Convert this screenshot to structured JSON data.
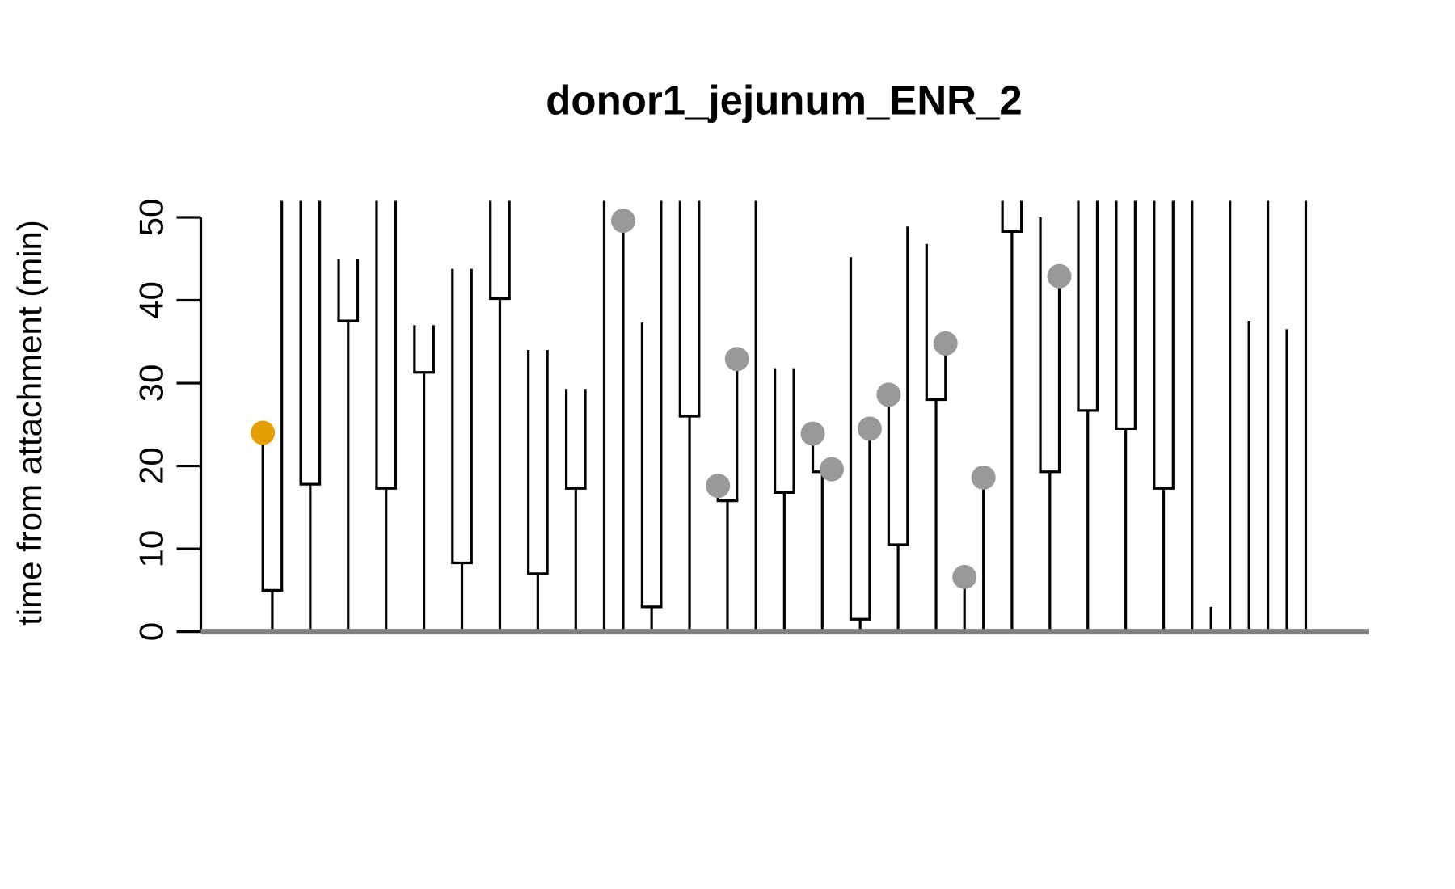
{
  "chart_data": {
    "type": "lineage",
    "title": "donor1_jejunum_ENR_2",
    "y_label": "time from attachment (min)",
    "ylim": [
      0,
      52
    ],
    "yticks": [
      0,
      10,
      20,
      30,
      40,
      50
    ],
    "line_color": "#000000",
    "baseline_color": "#808080",
    "lineages": [
      {
        "division": 5,
        "daughters": [
          {
            "end": 24,
            "dot": "#E69F00"
          },
          {
            "end": null
          }
        ]
      },
      {
        "division": 17.8,
        "daughters": [
          {
            "end": null
          },
          {
            "end": null
          }
        ]
      },
      {
        "division": 37.5,
        "daughters": [
          {
            "end": 45
          },
          {
            "end": 45
          }
        ]
      },
      {
        "division": 17.3,
        "daughters": [
          {
            "end": null
          },
          {
            "end": null
          }
        ]
      },
      {
        "division": 31.3,
        "daughters": [
          {
            "end": 37
          },
          {
            "end": 37
          }
        ]
      },
      {
        "division": 8.3,
        "daughters": [
          {
            "end": 43.8
          },
          {
            "end": 43.8
          }
        ]
      },
      {
        "division": 40.2,
        "daughters": [
          {
            "end": null
          },
          {
            "end": null
          }
        ]
      },
      {
        "division": 7,
        "daughters": [
          {
            "end": 34
          },
          {
            "end": 34
          }
        ]
      },
      {
        "division": 17.3,
        "daughters": [
          {
            "end": 29.3
          },
          {
            "end": 29.3
          }
        ]
      },
      {
        "end": null
      },
      {
        "end": 49.6,
        "dot": "#999999"
      },
      {
        "division": 3,
        "daughters": [
          {
            "end": 37.3
          },
          {
            "end": null
          }
        ]
      },
      {
        "division": 26,
        "daughters": [
          {
            "end": null
          },
          {
            "end": null
          }
        ]
      },
      {
        "division": 15.8,
        "daughters": [
          {
            "end": 17.6,
            "dot": "#999999"
          },
          {
            "end": 32.9,
            "dot": "#999999"
          }
        ]
      },
      {
        "end": null
      },
      {
        "division": 16.8,
        "daughters": [
          {
            "end": 31.8
          },
          {
            "end": 31.8
          }
        ]
      },
      {
        "division": 19.3,
        "daughters": [
          {
            "end": 23.9,
            "dot": "#999999"
          },
          {
            "end": 19.6,
            "dot": "#999999"
          }
        ]
      },
      {
        "division": 1.5,
        "daughters": [
          {
            "end": 45.2
          },
          {
            "end": 24.5,
            "dot": "#999999"
          }
        ]
      },
      {
        "division": 10.5,
        "daughters": [
          {
            "end": 28.6,
            "dot": "#999999"
          },
          {
            "end": 48.9
          }
        ]
      },
      {
        "division": 28,
        "daughters": [
          {
            "end": 46.8
          },
          {
            "end": 34.8,
            "dot": "#999999"
          }
        ]
      },
      {
        "end": 6.6,
        "dot": "#999999"
      },
      {
        "end": 18.6,
        "dot": "#999999"
      },
      {
        "division": 48.3,
        "daughters": [
          {
            "end": null
          },
          {
            "end": null
          }
        ]
      },
      {
        "division": 19.3,
        "daughters": [
          {
            "end": 50
          },
          {
            "end": 42.9,
            "dot": "#999999"
          }
        ]
      },
      {
        "division": 26.7,
        "daughters": [
          {
            "end": null
          },
          {
            "end": null
          }
        ]
      },
      {
        "division": 24.5,
        "daughters": [
          {
            "end": null
          },
          {
            "end": null
          }
        ]
      },
      {
        "division": 17.3,
        "daughters": [
          {
            "end": null
          },
          {
            "end": null
          }
        ]
      },
      {
        "end": null
      },
      {
        "end": 3
      },
      {
        "end": null
      },
      {
        "end": 37.5
      },
      {
        "end": null
      },
      {
        "end": 36.5
      },
      {
        "end": null
      }
    ]
  }
}
